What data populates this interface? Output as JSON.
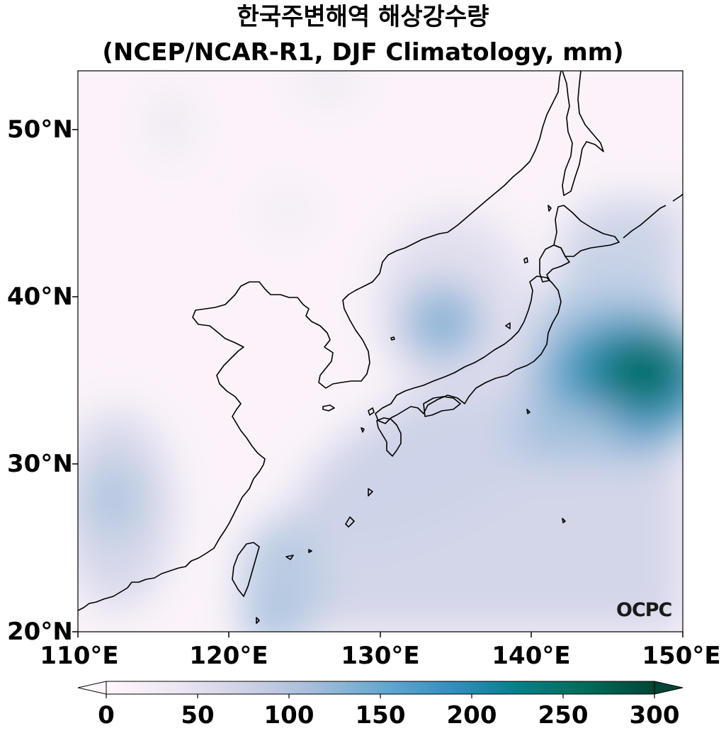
{
  "title": {
    "line1": "한국주변해역 해상강수량",
    "line2": "(NCEP/NCAR-R1, DJF Climatology, mm)"
  },
  "map": {
    "variable": "Precipitation over sea",
    "unit": "mm",
    "lon_range": [
      110,
      150
    ],
    "lat_range": [
      20,
      53.5
    ],
    "lat_ticks": [
      "20°N",
      "30°N",
      "40°N",
      "50°N"
    ],
    "lon_ticks": [
      "110°E",
      "120°E",
      "130°E",
      "140°E",
      "150°E"
    ],
    "coastline_color": "#000000"
  },
  "colorbar": {
    "min": 0,
    "max": 300,
    "ticks": [
      "0",
      "50",
      "100",
      "150",
      "200",
      "250",
      "300"
    ],
    "extend": "both",
    "colors": [
      "#fff7fb",
      "#ece7f2",
      "#d0d1e6",
      "#a6bddb",
      "#67a9cf",
      "#3690c0",
      "#02818a",
      "#016c59",
      "#014636"
    ]
  },
  "logo": {
    "text": "OCPC"
  }
}
